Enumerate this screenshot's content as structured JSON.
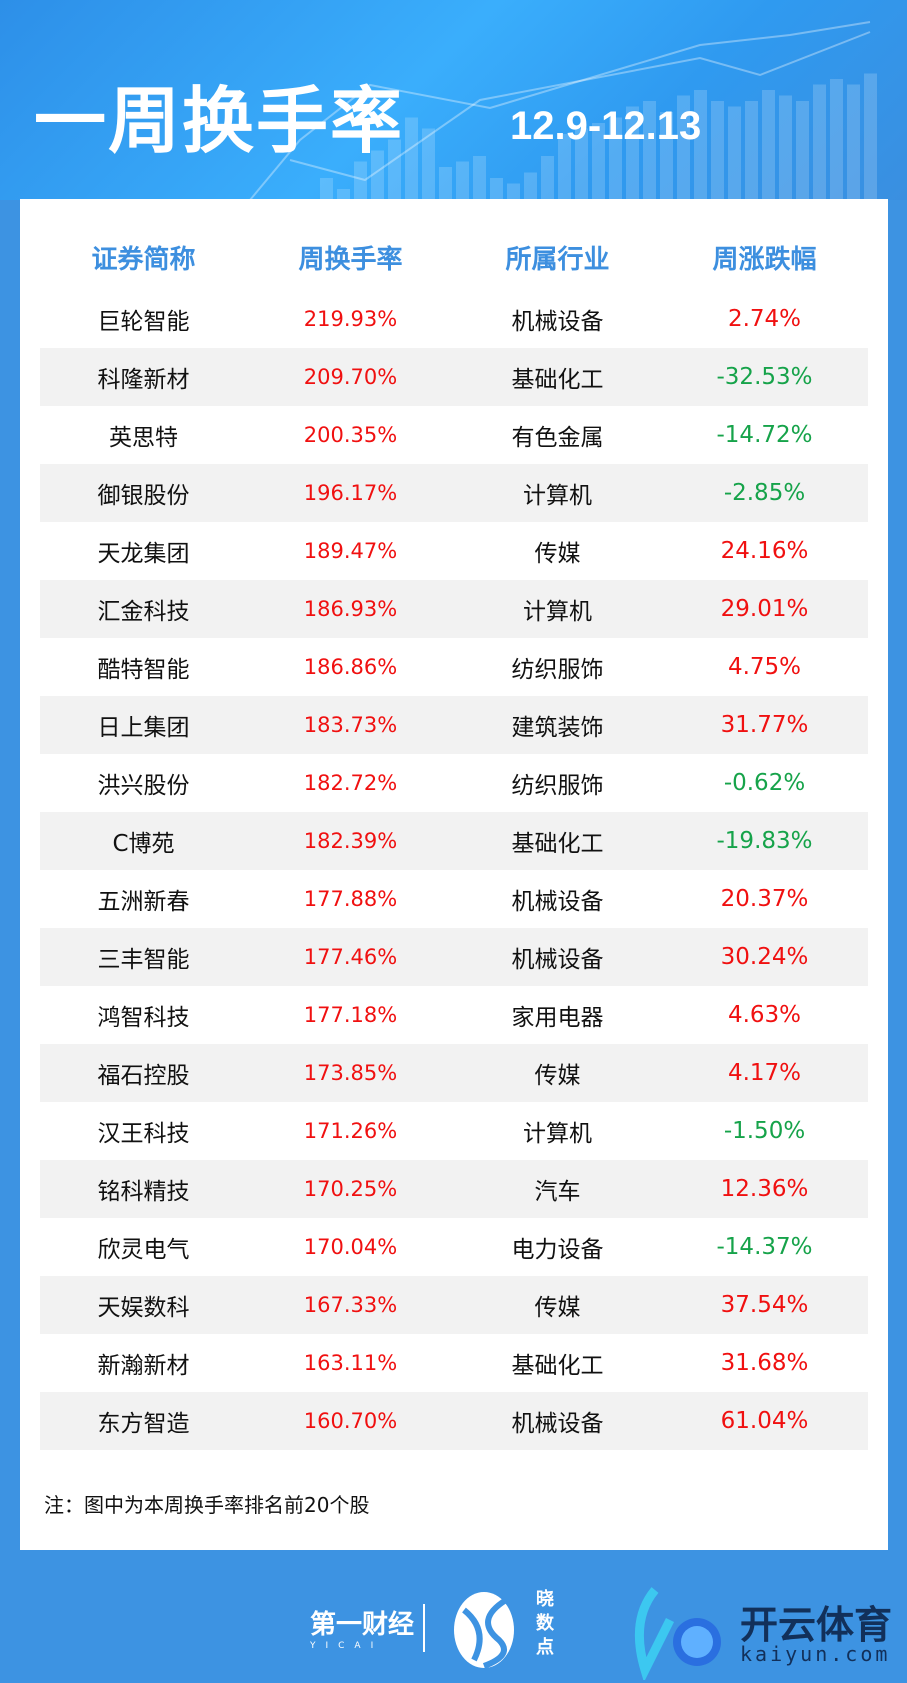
{
  "header": {
    "title": "一周换手率",
    "date_range": "12.9-12.13"
  },
  "table": {
    "columns": [
      "证券简称",
      "周换手率",
      "所属行业",
      "周涨跌幅"
    ],
    "rows": [
      [
        "巨轮智能",
        "219.93%",
        "机械设备",
        "2.74%"
      ],
      [
        "科隆新材",
        "209.70%",
        "基础化工",
        "-32.53%"
      ],
      [
        "英思特",
        "200.35%",
        "有色金属",
        "-14.72%"
      ],
      [
        "御银股份",
        "196.17%",
        "计算机",
        "-2.85%"
      ],
      [
        "天龙集团",
        "189.47%",
        "传媒",
        "24.16%"
      ],
      [
        "汇金科技",
        "186.93%",
        "计算机",
        "29.01%"
      ],
      [
        "酷特智能",
        "186.86%",
        "纺织服饰",
        "4.75%"
      ],
      [
        "日上集团",
        "183.73%",
        "建筑装饰",
        "31.77%"
      ],
      [
        "洪兴股份",
        "182.72%",
        "纺织服饰",
        "-0.62%"
      ],
      [
        "C博苑",
        "182.39%",
        "基础化工",
        "-19.83%"
      ],
      [
        "五洲新春",
        "177.88%",
        "机械设备",
        "20.37%"
      ],
      [
        "三丰智能",
        "177.46%",
        "机械设备",
        "30.24%"
      ],
      [
        "鸿智科技",
        "177.18%",
        "家用电器",
        "4.63%"
      ],
      [
        "福石控股",
        "173.85%",
        "传媒",
        "4.17%"
      ],
      [
        "汉王科技",
        "171.26%",
        "计算机",
        "-1.50%"
      ],
      [
        "铭科精技",
        "170.25%",
        "汽车",
        "12.36%"
      ],
      [
        "欣灵电气",
        "170.04%",
        "电力设备",
        "-14.37%"
      ],
      [
        "天娱数科",
        "167.33%",
        "传媒",
        "37.54%"
      ],
      [
        "新瀚新材",
        "163.11%",
        "基础化工",
        "31.68%"
      ],
      [
        "东方智造",
        "160.70%",
        "机械设备",
        "61.04%"
      ]
    ]
  },
  "note": "注：图中为本周换手率排名前20个股",
  "footer": {
    "logo1": "第一财经",
    "logo1_sub": "YICAI",
    "logo2": "晓数点",
    "logo3": "开云体育",
    "logo3_url": "kaiyun.com"
  },
  "colors": {
    "background": "#3d93e2",
    "header_text": "#3d8fdf",
    "up": "#f01010",
    "down": "#16a34a"
  }
}
